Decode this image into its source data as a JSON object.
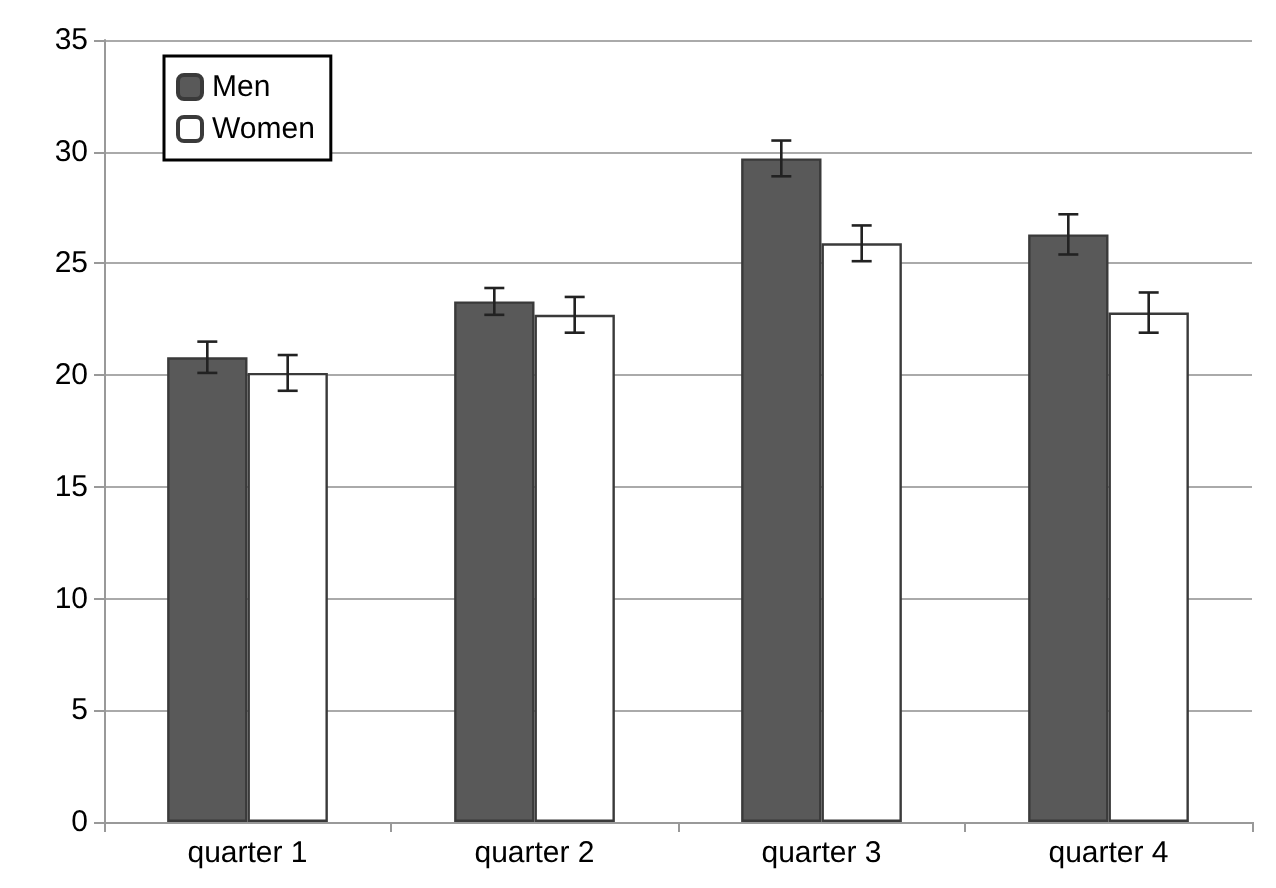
{
  "chart_data": {
    "type": "bar",
    "categories": [
      "quarter 1",
      "quarter 2",
      "quarter 3",
      "quarter 4"
    ],
    "series": [
      {
        "name": "Men",
        "color": "#595959",
        "values": [
          20.8,
          23.3,
          29.7,
          26.3
        ],
        "errors": [
          0.7,
          0.6,
          0.8,
          0.9
        ]
      },
      {
        "name": "Women",
        "color": "#ffffff",
        "values": [
          20.1,
          22.7,
          25.9,
          22.8
        ],
        "errors": [
          0.8,
          0.8,
          0.8,
          0.9
        ]
      }
    ],
    "ylim": [
      0,
      35
    ],
    "yticks": [
      0,
      5,
      10,
      15,
      20,
      25,
      30,
      35
    ],
    "grid": "y",
    "legend": "top left"
  }
}
